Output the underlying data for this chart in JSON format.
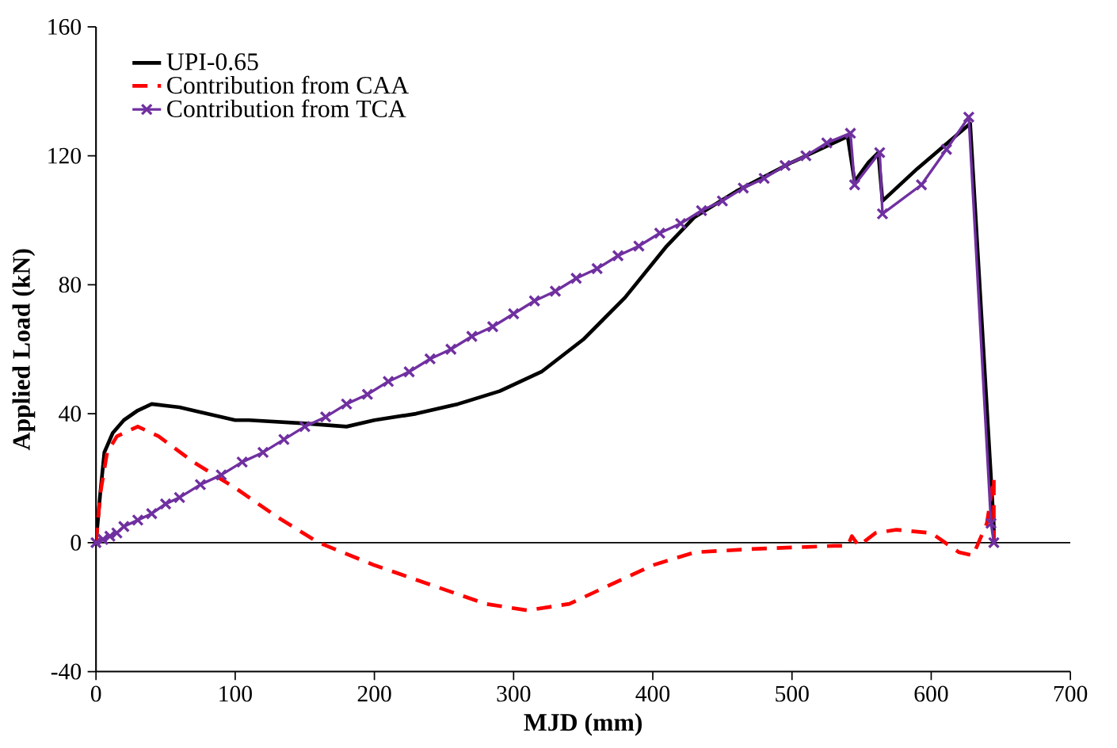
{
  "chart_data": {
    "type": "line",
    "xlabel": "MJD (mm)",
    "ylabel": "Applied  Load (kN)",
    "xlim": [
      0,
      700
    ],
    "ylim": [
      -40,
      160
    ],
    "xticks": [
      0,
      100,
      200,
      300,
      400,
      500,
      600,
      700
    ],
    "yticks": [
      -40,
      0,
      40,
      80,
      120,
      160
    ],
    "legend": "top left",
    "grid": false,
    "ref_lines": [
      {
        "axis": "y",
        "value": 0,
        "color": "#000000",
        "line_style": "solid"
      }
    ],
    "series": [
      {
        "name": "UPI-0.65",
        "color": "#000000",
        "line_style": "solid",
        "marker": "none",
        "x": [
          0,
          3,
          6,
          12,
          20,
          30,
          40,
          60,
          80,
          100,
          110,
          150,
          180,
          200,
          230,
          260,
          290,
          320,
          350,
          380,
          410,
          430,
          460,
          500,
          540,
          545,
          555,
          562,
          565,
          590,
          628,
          645,
          645
        ],
        "values": [
          0,
          15,
          28,
          34,
          38,
          41,
          43,
          42,
          40,
          38,
          38,
          37,
          36,
          38,
          40,
          43,
          47,
          53,
          63,
          76,
          92,
          101,
          109,
          118,
          126,
          112,
          118,
          121,
          106,
          116,
          130,
          5,
          0
        ]
      },
      {
        "name": "Contribution from CAA",
        "color": "#ff0000",
        "line_style": "dashed",
        "marker": "none",
        "x": [
          0,
          3,
          8,
          15,
          30,
          45,
          70,
          100,
          130,
          160,
          200,
          240,
          280,
          310,
          340,
          370,
          400,
          430,
          470,
          530,
          540,
          543,
          548,
          560,
          575,
          600,
          620,
          630,
          640,
          645,
          645
        ],
        "values": [
          0,
          15,
          28,
          33,
          36,
          33,
          25,
          17,
          8,
          0,
          -7,
          -13,
          -19,
          -21,
          -19,
          -13,
          -7,
          -3,
          -2,
          -1,
          -1,
          2,
          -1,
          3,
          4,
          3,
          -3,
          -4,
          6,
          20,
          0
        ]
      },
      {
        "name": "Contribution from TCA",
        "color": "#7030a0",
        "line_style": "solid",
        "marker": "cross",
        "x": [
          0,
          5,
          10,
          15,
          20,
          30,
          40,
          50,
          60,
          75,
          90,
          105,
          120,
          135,
          150,
          165,
          180,
          195,
          210,
          225,
          240,
          255,
          270,
          285,
          300,
          315,
          330,
          345,
          360,
          375,
          390,
          405,
          420,
          435,
          450,
          465,
          480,
          495,
          510,
          525,
          542,
          545,
          563,
          565,
          593,
          611,
          627,
          643,
          645
        ],
        "values": [
          0,
          1,
          2,
          3,
          5,
          7,
          9,
          12,
          14,
          18,
          21,
          25,
          28,
          32,
          36,
          39,
          43,
          46,
          50,
          53,
          57,
          60,
          64,
          67,
          71,
          75,
          78,
          82,
          85,
          89,
          92,
          96,
          99,
          103,
          106,
          110,
          113,
          117,
          120,
          124,
          127,
          111,
          121,
          102,
          111,
          122,
          132,
          6,
          0
        ]
      }
    ]
  }
}
